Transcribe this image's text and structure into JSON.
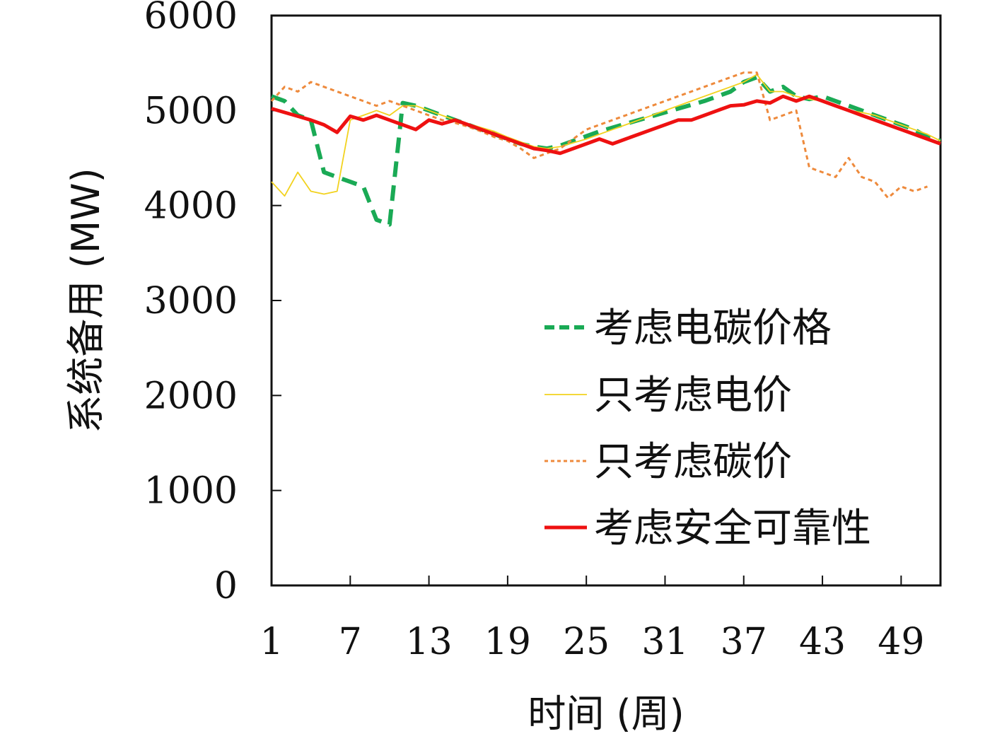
{
  "chart_data": {
    "type": "line",
    "xlabel": "时间 (周)",
    "ylabel": "系统备用 (MW)",
    "xlim": [
      1,
      52
    ],
    "ylim": [
      0,
      6000
    ],
    "xticks": [
      1,
      7,
      13,
      19,
      25,
      31,
      37,
      43,
      49
    ],
    "yticks": [
      0,
      1000,
      2000,
      3000,
      4000,
      5000,
      6000
    ],
    "grid": false,
    "legend_position": "bottom-right",
    "series": [
      {
        "name": "考虑电碳价格",
        "color": "#1aaa55",
        "style": "dashed-thick",
        "x": [
          1,
          2,
          3,
          4,
          5,
          6,
          7,
          8,
          9,
          10,
          11,
          12,
          13,
          14,
          15,
          16,
          17,
          18,
          19,
          20,
          21,
          22,
          23,
          24,
          25,
          26,
          27,
          28,
          29,
          30,
          31,
          32,
          33,
          34,
          35,
          36,
          37,
          38,
          39,
          40,
          41,
          42,
          43,
          44,
          45,
          46,
          47,
          48,
          49,
          50,
          51,
          52
        ],
        "values": [
          5150,
          5100,
          4950,
          4900,
          4350,
          4300,
          4250,
          4200,
          3850,
          3800,
          5080,
          5050,
          5000,
          4950,
          4900,
          4850,
          4800,
          4750,
          4700,
          4650,
          4620,
          4600,
          4630,
          4680,
          4730,
          4780,
          4820,
          4860,
          4900,
          4940,
          4980,
          5020,
          5060,
          5100,
          5150,
          5200,
          5300,
          5350,
          5200,
          5250,
          5150,
          5120,
          5150,
          5100,
          5050,
          5000,
          4950,
          4900,
          4850,
          4800,
          4720,
          4680
        ]
      },
      {
        "name": "只考虑电价",
        "color": "#f2d21e",
        "style": "solid-thin",
        "x": [
          1,
          2,
          3,
          4,
          5,
          6,
          7,
          8,
          9,
          10,
          11,
          12,
          13,
          14,
          15,
          16,
          17,
          18,
          19,
          20,
          21,
          22,
          23,
          24,
          25,
          26,
          27,
          28,
          29,
          30,
          31,
          32,
          33,
          34,
          35,
          36,
          37,
          38,
          39,
          40,
          41,
          42,
          43,
          44,
          45,
          46,
          47,
          48,
          49,
          50,
          51,
          52
        ],
        "values": [
          4250,
          4100,
          4350,
          4150,
          4120,
          4150,
          4900,
          4950,
          5000,
          4950,
          5050,
          5050,
          5000,
          4950,
          4900,
          4860,
          4820,
          4780,
          4720,
          4670,
          4620,
          4600,
          4620,
          4660,
          4700,
          4750,
          4800,
          4850,
          4900,
          4950,
          5000,
          5050,
          5100,
          5150,
          5200,
          5250,
          5300,
          5380,
          5200,
          5200,
          5150,
          5120,
          5100,
          5050,
          5000,
          4980,
          4950,
          4900,
          4850,
          4800,
          4750,
          4680
        ]
      },
      {
        "name": "只考虑碳价",
        "color": "#ee8a3c",
        "style": "dotted",
        "x": [
          1,
          2,
          3,
          4,
          5,
          6,
          7,
          8,
          9,
          10,
          11,
          12,
          13,
          14,
          15,
          16,
          17,
          18,
          19,
          20,
          21,
          22,
          23,
          24,
          25,
          26,
          27,
          28,
          29,
          30,
          31,
          32,
          33,
          34,
          35,
          36,
          37,
          38,
          39,
          40,
          41,
          42,
          43,
          44,
          45,
          46,
          47,
          48,
          49,
          50,
          51
        ],
        "values": [
          5100,
          5250,
          5200,
          5300,
          5250,
          5200,
          5150,
          5100,
          5050,
          5100,
          5050,
          5000,
          4950,
          4900,
          4870,
          4830,
          4780,
          4720,
          4680,
          4600,
          4500,
          4550,
          4600,
          4700,
          4800,
          4850,
          4900,
          4950,
          5000,
          5050,
          5100,
          5150,
          5200,
          5250,
          5300,
          5350,
          5400,
          5400,
          4900,
          4950,
          5000,
          4400,
          4350,
          4300,
          4500,
          4300,
          4250,
          4080,
          4200,
          4150,
          4200
        ]
      },
      {
        "name": "考虑安全可靠性",
        "color": "#ee1111",
        "style": "solid-thick",
        "x": [
          1,
          2,
          3,
          4,
          5,
          6,
          7,
          8,
          9,
          10,
          11,
          12,
          13,
          14,
          15,
          16,
          17,
          18,
          19,
          20,
          21,
          22,
          23,
          24,
          25,
          26,
          27,
          28,
          29,
          30,
          31,
          32,
          33,
          34,
          35,
          36,
          37,
          38,
          39,
          40,
          41,
          42,
          43,
          44,
          45,
          46,
          47,
          48,
          49,
          50,
          51,
          52
        ],
        "values": [
          5020,
          4980,
          4940,
          4900,
          4850,
          4770,
          4940,
          4900,
          4950,
          4900,
          4850,
          4800,
          4900,
          4860,
          4900,
          4850,
          4800,
          4750,
          4700,
          4650,
          4600,
          4580,
          4550,
          4600,
          4650,
          4700,
          4650,
          4700,
          4750,
          4800,
          4850,
          4900,
          4900,
          4950,
          5000,
          5050,
          5060,
          5100,
          5080,
          5150,
          5100,
          5150,
          5100,
          5050,
          5000,
          4950,
          4900,
          4850,
          4800,
          4750,
          4700,
          4650
        ]
      }
    ]
  }
}
